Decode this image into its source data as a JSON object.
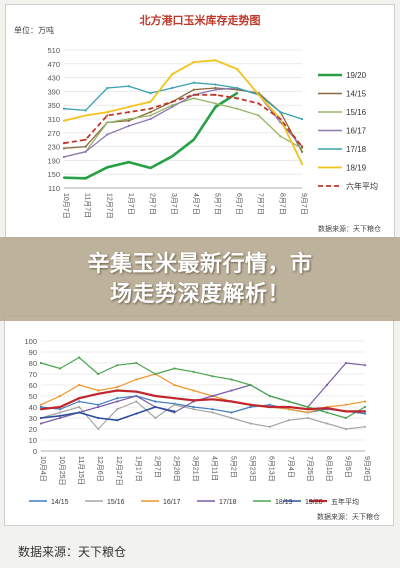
{
  "banner": {
    "line1": "辛集玉米最新行情，市",
    "line2": "场走势深度解析！"
  },
  "caption": "数据来源：天下粮仓",
  "chart_data": [
    {
      "type": "line",
      "title": "北方港口玉米库存走势图",
      "unit_label": "单位：万吨",
      "source": "数据来源：天下粮仓",
      "ylim": [
        110,
        510
      ],
      "yticks": [
        110,
        150,
        190,
        230,
        270,
        310,
        350,
        390,
        430,
        470,
        510
      ],
      "categories": [
        "10月7日",
        "11月7日",
        "12月7日",
        "1月7日",
        "2月7日",
        "3月7日",
        "4月7日",
        "5月7日",
        "6月7日",
        "7月7日",
        "8月7日",
        "9月7日"
      ],
      "series": [
        {
          "name": "19/20",
          "color": "#27a046",
          "width": 2.6,
          "dash": "",
          "values": [
            140,
            138,
            170,
            185,
            168,
            202,
            250,
            345,
            385,
            null,
            null,
            null
          ]
        },
        {
          "name": "14/15",
          "color": "#8a6a3c",
          "width": 1.3,
          "dash": "",
          "values": [
            225,
            230,
            300,
            305,
            330,
            360,
            395,
            400,
            395,
            385,
            330,
            215
          ]
        },
        {
          "name": "15/16",
          "color": "#95b465",
          "width": 1.3,
          "dash": "",
          "values": [
            200,
            215,
            300,
            310,
            320,
            350,
            370,
            355,
            340,
            320,
            260,
            225
          ]
        },
        {
          "name": "16/17",
          "color": "#8e78b5",
          "width": 1.3,
          "dash": "",
          "values": [
            200,
            215,
            265,
            290,
            310,
            345,
            380,
            395,
            400,
            380,
            300,
            230
          ]
        },
        {
          "name": "17/18",
          "color": "#3aa0b4",
          "width": 1.3,
          "dash": "",
          "values": [
            340,
            335,
            400,
            405,
            385,
            400,
            415,
            410,
            400,
            380,
            330,
            310
          ]
        },
        {
          "name": "18/19",
          "color": "#f2c31a",
          "width": 1.8,
          "dash": "",
          "values": [
            305,
            320,
            330,
            345,
            360,
            440,
            475,
            480,
            455,
            380,
            310,
            180
          ]
        },
        {
          "name": "六年平均",
          "color": "#c0392b",
          "width": 1.8,
          "dash": "5,3",
          "values": [
            240,
            250,
            320,
            330,
            340,
            360,
            380,
            380,
            370,
            355,
            310,
            230
          ]
        }
      ]
    },
    {
      "type": "line",
      "source": "数据来源：天下粮仓",
      "ylim": [
        0,
        100
      ],
      "yticks": [
        0,
        10,
        20,
        30,
        40,
        50,
        60,
        70,
        80,
        90,
        100
      ],
      "categories": [
        "10月4日",
        "10月25日",
        "11月15日",
        "12月6日",
        "12月27日",
        "1月17日",
        "2月7日",
        "2月28日",
        "3月21日",
        "4月11日",
        "5月2日",
        "5月23日",
        "6月13日",
        "7月4日",
        "7月25日",
        "8月15日",
        "9月5日",
        "9月26日"
      ],
      "series": [
        {
          "name": "14/15",
          "color": "#3f7bc1",
          "width": 1.2,
          "values": [
            40,
            38,
            45,
            42,
            48,
            50,
            45,
            43,
            40,
            38,
            35,
            40,
            42,
            38,
            35,
            38,
            36,
            34
          ]
        },
        {
          "name": "15/16",
          "color": "#a6a6a6",
          "width": 1.2,
          "values": [
            30,
            35,
            40,
            20,
            38,
            45,
            30,
            42,
            38,
            35,
            30,
            25,
            22,
            28,
            30,
            25,
            20,
            22
          ]
        },
        {
          "name": "16/17",
          "color": "#f0962b",
          "width": 1.2,
          "values": [
            42,
            50,
            60,
            55,
            58,
            65,
            70,
            60,
            55,
            50,
            45,
            42,
            40,
            38,
            35,
            40,
            42,
            45
          ]
        },
        {
          "name": "17/18",
          "color": "#7a5da8",
          "width": 1.2,
          "values": [
            25,
            30,
            35,
            40,
            45,
            50,
            40,
            35,
            45,
            50,
            55,
            60,
            50,
            45,
            40,
            60,
            80,
            78
          ]
        },
        {
          "name": "18/19",
          "color": "#4aa64c",
          "width": 1.2,
          "values": [
            80,
            75,
            85,
            70,
            78,
            80,
            70,
            75,
            72,
            68,
            65,
            60,
            50,
            45,
            40,
            35,
            30,
            40
          ]
        },
        {
          "name": "五年平均",
          "color": "#c0262c",
          "width": 2.2,
          "values": [
            38,
            40,
            48,
            52,
            55,
            54,
            50,
            48,
            46,
            47,
            45,
            42,
            40,
            40,
            38,
            39,
            36,
            36
          ]
        },
        {
          "name": "19/20",
          "color": "#2d4f9e",
          "width": 1.6,
          "values": [
            30,
            32,
            35,
            30,
            28,
            34,
            40,
            36,
            null,
            null,
            null,
            null,
            null,
            null,
            null,
            null,
            null,
            null
          ]
        }
      ]
    }
  ]
}
